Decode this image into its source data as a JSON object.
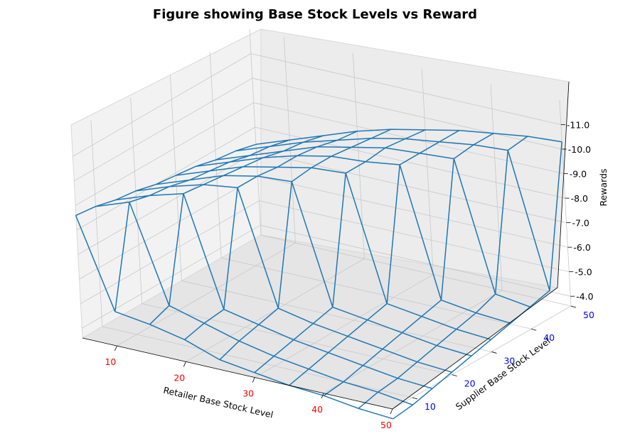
{
  "chart_data": {
    "type": "wireframe-3d",
    "title": "Figure showing Base Stock Levels vs Reward",
    "xlabel": "Retailer Base Stock Level",
    "ylabel": "Supplier Base Stock Level",
    "zlabel": "Rewards",
    "xlim": [
      5,
      50
    ],
    "ylim": [
      5,
      50
    ],
    "zlim": [
      -3.6,
      -12.0
    ],
    "x_ticks": [
      "10",
      "20",
      "30",
      "40",
      "50"
    ],
    "y_ticks": [
      "10",
      "20",
      "30",
      "40",
      "50"
    ],
    "z_ticks": [
      "-4.0",
      "-5.0",
      "-6.0",
      "-7.0",
      "-8.0",
      "-9.0",
      "-10.0",
      "-11.0"
    ],
    "x_tick_color": "#ff0000",
    "y_tick_color": "#0000ff",
    "line_color": "#1f77b4",
    "grid": true,
    "x": [
      5,
      10,
      15,
      20,
      25,
      30,
      35,
      40,
      45,
      50
    ],
    "y": [
      5,
      10,
      15,
      20,
      25,
      30,
      35,
      40,
      45,
      50
    ],
    "z": [
      [
        -8.6,
        -5.0,
        -4.8,
        -4.5,
        -4.0,
        -3.8,
        -3.6,
        -3.5,
        -3.3,
        -3.2
      ],
      [
        -8.5,
        -9.0,
        -5.1,
        -4.7,
        -4.3,
        -4.0,
        -3.8,
        -3.6,
        -3.5,
        -3.3
      ],
      [
        -8.3,
        -8.8,
        -9.2,
        -4.8,
        -4.5,
        -4.2,
        -4.0,
        -3.8,
        -3.6,
        -3.5
      ],
      [
        -8.2,
        -8.7,
        -9.1,
        -9.3,
        -4.7,
        -4.4,
        -4.2,
        -4.0,
        -3.8,
        -3.7
      ],
      [
        -8.0,
        -8.5,
        -9.0,
        -9.3,
        -9.4,
        -4.6,
        -4.4,
        -4.2,
        -4.0,
        -3.9
      ],
      [
        -7.9,
        -8.4,
        -8.9,
        -9.2,
        -9.5,
        -9.6,
        -4.6,
        -4.4,
        -4.2,
        -4.1
      ],
      [
        -7.8,
        -8.3,
        -8.8,
        -9.2,
        -9.5,
        -9.6,
        -9.8,
        -4.6,
        -4.4,
        -4.3
      ],
      [
        -7.6,
        -8.1,
        -8.6,
        -9.1,
        -9.4,
        -9.7,
        -9.8,
        -9.9,
        -4.7,
        -4.5
      ],
      [
        -7.5,
        -8.0,
        -8.5,
        -8.9,
        -9.3,
        -9.6,
        -9.8,
        -10.0,
        -10.1,
        -4.7
      ],
      [
        -7.3,
        -7.8,
        -8.3,
        -8.8,
        -9.2,
        -9.5,
        -9.8,
        -10.0,
        -10.2,
        -10.3
      ]
    ]
  }
}
